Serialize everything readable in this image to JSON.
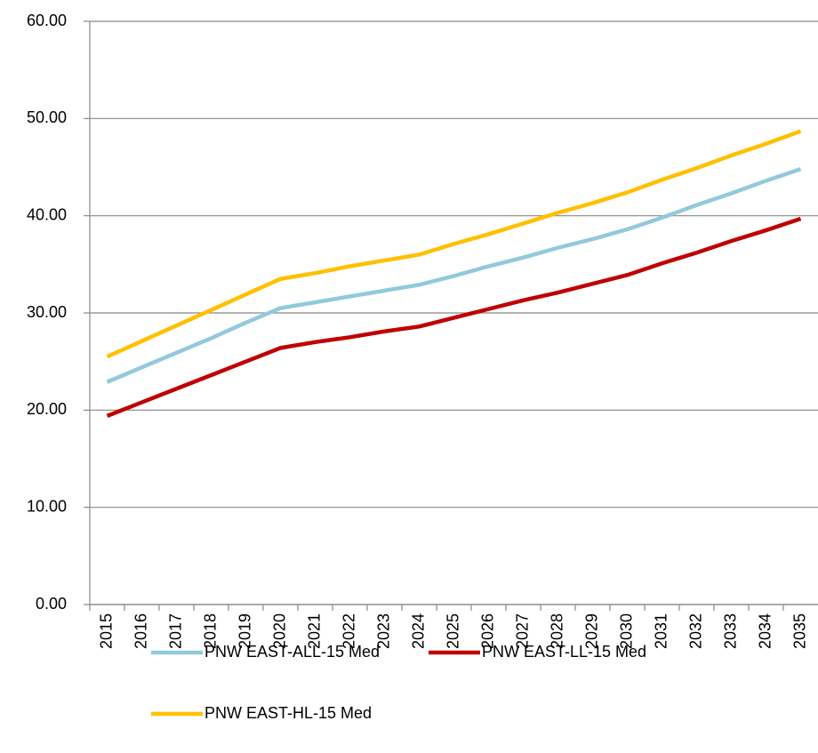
{
  "chart_data": {
    "type": "line",
    "categories": [
      "2015",
      "2016",
      "2017",
      "2018",
      "2019",
      "2020",
      "2021",
      "2022",
      "2023",
      "2024",
      "2025",
      "2026",
      "2027",
      "2028",
      "2029",
      "2030",
      "2031",
      "2032",
      "2033",
      "2034",
      "2035"
    ],
    "series": [
      {
        "name": "PNW EAST-ALL-15 Med",
        "color": "#92c9dc",
        "values": [
          22.9,
          24.4,
          25.9,
          27.4,
          29.0,
          30.5,
          31.1,
          31.7,
          32.3,
          32.9,
          33.8,
          34.8,
          35.7,
          36.7,
          37.6,
          38.6,
          39.8,
          41.1,
          42.3,
          43.6,
          44.8
        ]
      },
      {
        "name": "PNW EAST-LL-15 Med",
        "color": "#c00000",
        "values": [
          19.4,
          20.8,
          22.2,
          23.6,
          25.0,
          26.4,
          27.0,
          27.5,
          28.1,
          28.6,
          29.5,
          30.4,
          31.3,
          32.1,
          33.0,
          33.9,
          35.1,
          36.2,
          37.4,
          38.5,
          39.7
        ]
      },
      {
        "name": "PNW EAST-HL-15 Med",
        "color": "#ffc000",
        "values": [
          25.5,
          27.1,
          28.7,
          30.3,
          31.9,
          33.5,
          34.1,
          34.8,
          35.4,
          36.0,
          37.1,
          38.1,
          39.2,
          40.3,
          41.3,
          42.4,
          43.7,
          44.9,
          46.2,
          47.4,
          48.7
        ]
      }
    ],
    "ylim": [
      0,
      60
    ],
    "yticks": [
      {
        "value": 0,
        "label": "0.00"
      },
      {
        "value": 10,
        "label": "10.00"
      },
      {
        "value": 20,
        "label": "20.00"
      },
      {
        "value": 30,
        "label": "30.00"
      },
      {
        "value": 40,
        "label": "40.00"
      },
      {
        "value": 50,
        "label": "50.00"
      },
      {
        "value": 60,
        "label": "60.00"
      }
    ],
    "grid": true
  }
}
